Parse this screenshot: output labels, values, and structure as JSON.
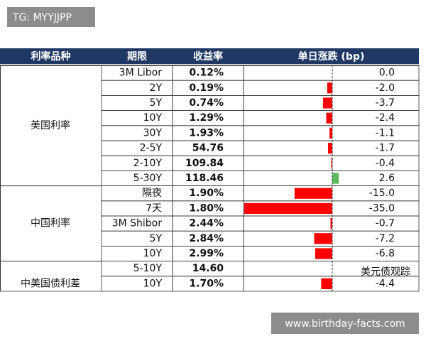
{
  "watermark": "TG: MYYJJPP",
  "table": {
    "header": [
      "利率品种",
      "期限",
      "收益率",
      "单日涨跌 (bp)"
    ],
    "groups": [
      {
        "label": "美国利率",
        "rows": [
          [
            "3M Libor",
            "0.12%",
            "0.0"
          ],
          [
            "2Y",
            "0.19%",
            "-2.0"
          ],
          [
            "5Y",
            "0.74%",
            "-3.7"
          ],
          [
            "10Y",
            "1.29%",
            "-2.4"
          ],
          [
            "30Y",
            "1.93%",
            "-1.1"
          ],
          [
            "2-5Y",
            "54.76",
            "-1.7"
          ],
          [
            "2-10Y",
            "109.84",
            "-0.4"
          ],
          [
            "5-30Y",
            "118.46",
            "2.6"
          ]
        ]
      },
      {
        "label": "中国利率",
        "rows": [
          [
            "隔夜",
            "1.90%",
            "-15.0"
          ],
          [
            "7天",
            "1.80%",
            "-35.0"
          ],
          [
            "3M Shibor",
            "2.44%",
            "-0.7"
          ],
          [
            "5Y",
            "2.84%",
            "-7.2"
          ],
          [
            "10Y",
            "2.99%",
            "-6.8"
          ]
        ]
      },
      {
        "label": "中美国债利差",
        "rows": [
          [
            "5-10Y",
            "14.60",
            null
          ],
          [
            "10Y",
            "1.70%",
            "-4.4"
          ]
        ]
      }
    ]
  },
  "logo": "美元债观踪",
  "footer_watermark": "www.birthday-facts.com"
}
